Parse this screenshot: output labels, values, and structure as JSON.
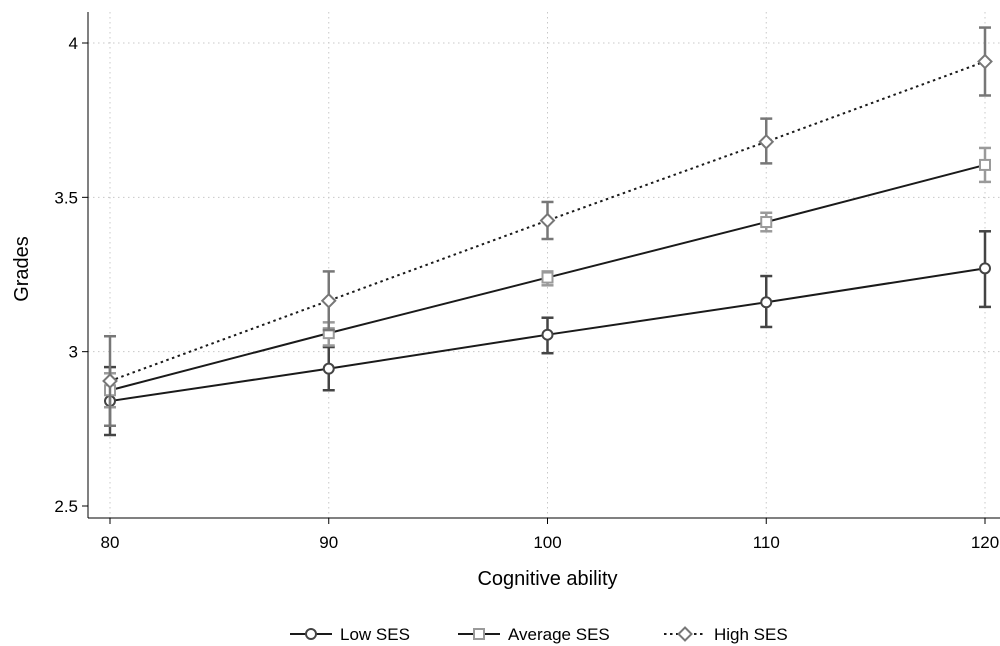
{
  "chart_data": {
    "type": "line",
    "title": "",
    "xlabel": "Cognitive ability",
    "ylabel": "Grades",
    "xlim": [
      80,
      120
    ],
    "ylim": [
      2.5,
      4.1
    ],
    "x": [
      80,
      90,
      100,
      110,
      120
    ],
    "xticks": [
      80,
      90,
      100,
      110,
      120
    ],
    "xtick_labels": [
      "80",
      "90",
      "100",
      "110",
      "120"
    ],
    "yticks": [
      2.5,
      3,
      3.5,
      4
    ],
    "ytick_labels": [
      "2.5",
      "3",
      "3.5",
      "4"
    ],
    "grid": true,
    "legend_position": "bottom",
    "series": [
      {
        "name": "Low SES",
        "marker": "circle",
        "line_style": "solid",
        "line_color": "#1a1a1a",
        "marker_color": "#444444",
        "values": [
          2.84,
          2.945,
          3.055,
          3.16,
          3.27
        ],
        "ci_low": [
          2.73,
          2.875,
          2.995,
          3.08,
          3.145
        ],
        "ci_high": [
          2.95,
          3.015,
          3.11,
          3.245,
          3.39
        ]
      },
      {
        "name": "Average SES",
        "marker": "square",
        "line_style": "solid",
        "line_color": "#1a1a1a",
        "marker_color": "#9a9a9a",
        "values": [
          2.875,
          3.06,
          3.24,
          3.42,
          3.605
        ],
        "ci_low": [
          2.82,
          3.02,
          3.215,
          3.39,
          3.55
        ],
        "ci_high": [
          2.93,
          3.095,
          3.26,
          3.45,
          3.66
        ]
      },
      {
        "name": "High SES",
        "marker": "diamond",
        "line_style": "dotted",
        "line_color": "#1a1a1a",
        "marker_color": "#777777",
        "values": [
          2.905,
          3.165,
          3.425,
          3.68,
          3.94
        ],
        "ci_low": [
          2.76,
          3.07,
          3.365,
          3.61,
          3.83
        ],
        "ci_high": [
          3.05,
          3.26,
          3.485,
          3.755,
          4.05
        ]
      }
    ]
  }
}
